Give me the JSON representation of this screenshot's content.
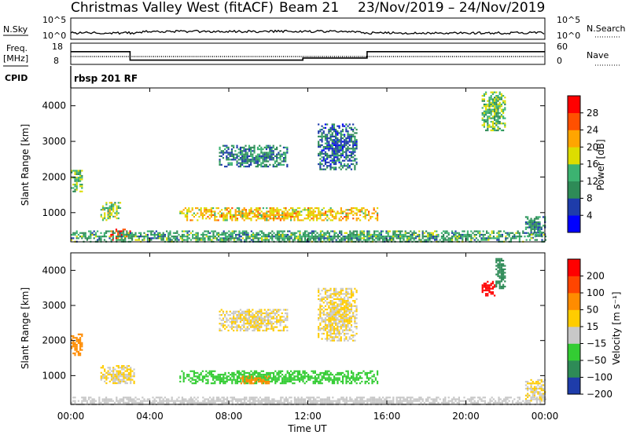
{
  "header": {
    "radar": "Christmas Valley West (fitACF)",
    "beam": "Beam 21",
    "date_range": "23/Nov/2019 – 24/Nov/2019"
  },
  "strip": {
    "nsky_label": "N.Sky",
    "nsky_ticks": [
      "10^5",
      "10^0"
    ],
    "nsearch_label": "N.Search",
    "freq_label": "Freq.",
    "freq_unit": "[MHz]",
    "freq_ticks": [
      "18",
      "8"
    ],
    "nave_label": "Nave",
    "nave_ticks": [
      "60",
      "0"
    ],
    "cpid_label": "CPID",
    "cpid_value": "rbsp 201 RF"
  },
  "power_panel": {
    "ylabel": "Slant Range [km]",
    "colorbar_label": "Power [dB]",
    "colorbar_ticks": [
      "28",
      "24",
      "20",
      "16",
      "12",
      "8",
      "4"
    ],
    "colors": [
      "#0000ff",
      "#1e3caa",
      "#2e8b57",
      "#3cb371",
      "#dddd00",
      "#ffa500",
      "#ff5000",
      "#ff0000"
    ]
  },
  "velocity_panel": {
    "ylabel": "Slant Range [km]",
    "colorbar_label": "Velocity [m s⁻¹]",
    "colorbar_ticks": [
      "200",
      "100",
      "50",
      "15",
      "−15",
      "−50",
      "−100",
      "−200"
    ],
    "colors": [
      "#1e3caa",
      "#2e8b57",
      "#33cc33",
      "#c8c8c8",
      "#ffcc00",
      "#ff8c00",
      "#ff4500",
      "#ff0000"
    ]
  },
  "xaxis": {
    "label": "Time UT",
    "ticks": [
      "00:00",
      "04:00",
      "08:00",
      "12:00",
      "16:00",
      "20:00",
      "00:00"
    ]
  },
  "chart_data": {
    "type": "heatmap",
    "x_range_hours": [
      0,
      24
    ],
    "y_range_km": [
      180,
      4500
    ],
    "y_ticks": [
      1000,
      2000,
      3000,
      4000
    ],
    "frequency_mhz": [
      {
        "from": "00:00",
        "to": "03:00",
        "value": 14
      },
      {
        "from": "03:00",
        "to": "11:45",
        "value": 10
      },
      {
        "from": "11:45",
        "to": "15:00",
        "value": 11
      },
      {
        "from": "15:00",
        "to": "24:00",
        "value": 14
      }
    ],
    "power_features": [
      {
        "t0": 0.0,
        "t1": 0.6,
        "r0": 1600,
        "r1": 2200,
        "power_db": 14
      },
      {
        "t0": 1.5,
        "t1": 2.5,
        "r0": 800,
        "r1": 1300,
        "power_db": 16
      },
      {
        "t0": 2.0,
        "t1": 3.0,
        "r0": 250,
        "r1": 550,
        "power_db": 28
      },
      {
        "t0": 5.5,
        "t1": 15.5,
        "r0": 800,
        "r1": 1150,
        "power_db": 20
      },
      {
        "t0": 7.5,
        "t1": 11.0,
        "r0": 2300,
        "r1": 2900,
        "power_db": 10
      },
      {
        "t0": 12.5,
        "t1": 14.5,
        "r0": 2200,
        "r1": 3500,
        "power_db": 8
      },
      {
        "t0": 20.8,
        "t1": 22.0,
        "r0": 3300,
        "r1": 4400,
        "power_db": 14
      },
      {
        "t0": 23.0,
        "t1": 24.0,
        "r0": 300,
        "r1": 900,
        "power_db": 10
      },
      {
        "t0": 0.0,
        "t1": 24.0,
        "r0": 180,
        "r1": 500,
        "power_db": 12
      }
    ],
    "velocity_features": [
      {
        "t0": 0.0,
        "t1": 0.6,
        "r0": 1600,
        "r1": 2200,
        "velocity": -50
      },
      {
        "t0": 1.5,
        "t1": 3.2,
        "r0": 800,
        "r1": 1300,
        "velocity": 0
      },
      {
        "t0": 5.5,
        "t1": 15.5,
        "r0": 800,
        "r1": 1150,
        "velocity": 50
      },
      {
        "t0": 8.5,
        "t1": 10.0,
        "r0": 800,
        "r1": 1000,
        "velocity": -50
      },
      {
        "t0": 7.5,
        "t1": 11.0,
        "r0": 2300,
        "r1": 2900,
        "velocity": 0
      },
      {
        "t0": 12.5,
        "t1": 14.5,
        "r0": 2000,
        "r1": 3500,
        "velocity": 0
      },
      {
        "t0": 20.8,
        "t1": 21.5,
        "r0": 3300,
        "r1": 3700,
        "velocity": -200
      },
      {
        "t0": 21.5,
        "t1": 22.0,
        "r0": 3500,
        "r1": 4400,
        "velocity": 100
      },
      {
        "t0": 23.0,
        "t1": 24.0,
        "r0": 300,
        "r1": 900,
        "velocity": 0
      },
      {
        "t0": 0.0,
        "t1": 24.0,
        "r0": 180,
        "r1": 400,
        "velocity": 15
      }
    ]
  }
}
